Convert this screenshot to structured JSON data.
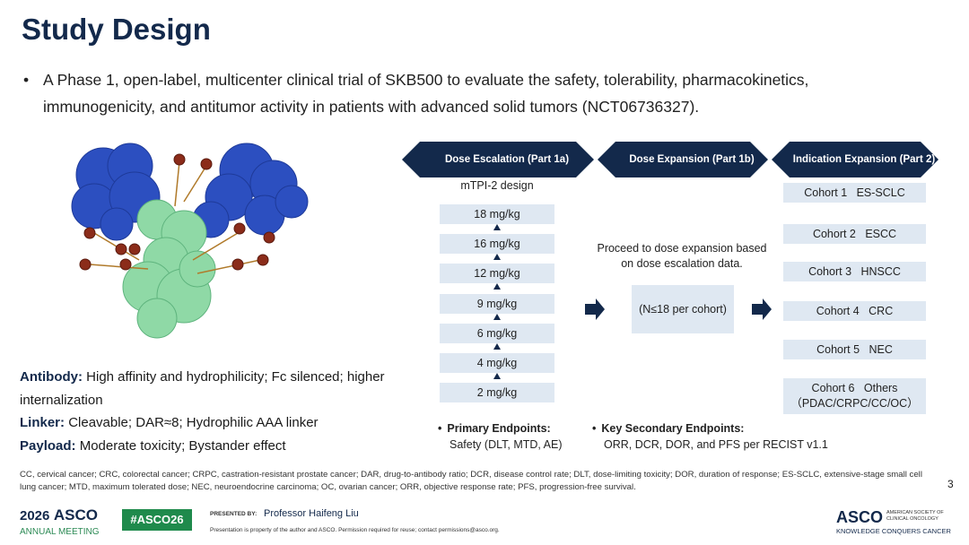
{
  "header": {
    "title": "Study Design"
  },
  "intro": "A Phase 1, open-label, multicenter clinical trial of SKB500 to evaluate the safety, tolerability, pharmacokinetics, immunogenicity, and antitumor activity in patients with advanced solid tumors (NCT06736327).",
  "bullet": "•",
  "properties": [
    {
      "label": "Antibody:",
      "text": "High affinity and hydrophilicity; Fc silenced; higher internalization"
    },
    {
      "label": "Linker:",
      "text": "Cleavable; DAR≈8; Hydrophilic AAA linker"
    },
    {
      "label": "Payload:",
      "text": "Moderate toxicity; Bystander effect"
    }
  ],
  "phases": [
    "Dose Escalation (Part 1a)",
    "Dose Expansion (Part 1b)",
    "Indication Expansion (Part 2)"
  ],
  "escalation": {
    "design": "mTPI-2 design",
    "doses": [
      "18 mg/kg",
      "16 mg/kg",
      "12 mg/kg",
      "9 mg/kg",
      "6 mg/kg",
      "4 mg/kg",
      "2 mg/kg"
    ]
  },
  "expansion": {
    "note": "Proceed to dose expansion based on dose escalation data.",
    "size": "(N≤18 per cohort)"
  },
  "cohorts": [
    {
      "label": "Cohort 1",
      "name": "ES-SCLC"
    },
    {
      "label": "Cohort 2",
      "name": "ESCC"
    },
    {
      "label": "Cohort 3",
      "name": "HNSCC"
    },
    {
      "label": "Cohort 4",
      "name": "CRC"
    },
    {
      "label": "Cohort 5",
      "name": "NEC"
    },
    {
      "label": "Cohort 6",
      "name": "Others",
      "detail": "（PDAC/CRPC/CC/OC）"
    }
  ],
  "endpoints": [
    {
      "label": "Primary Endpoints:",
      "text": "Safety (DLT, MTD, AE)"
    },
    {
      "label": "Key Secondary Endpoints:",
      "text": "ORR, DCR, DOR, and PFS per RECIST v1.1"
    }
  ],
  "footnote": "CC, cervical cancer; CRC, colorectal cancer; CRPC, castration-resistant prostate cancer; DAR, drug-to-antibody ratio; DCR, disease control rate; DLT, dose-limiting toxicity; DOR, duration of response; ES-SCLC, extensive-stage small cell lung cancer; MTD, maximum tolerated dose; NEC, neuroendocrine carcinoma; OC, ovarian cancer; ORR, objective response rate; PFS, progression-free survival.",
  "page_number": 3,
  "footer": {
    "year": "2026",
    "brand": "ASCO",
    "meeting": "ANNUAL MEETING",
    "hashtag": "#ASCO26",
    "presented_by": "PRESENTED BY:",
    "presenter": "Professor Haifeng Liu",
    "notice": "Presentation is property of the author and ASCO. Permission required for reuse; contact permissions@asco.org.",
    "society": "ASCO",
    "society_full": "AMERICAN SOCIETY OF CLINICAL ONCOLOGY",
    "tagline": "KNOWLEDGE CONQUERS CANCER"
  }
}
